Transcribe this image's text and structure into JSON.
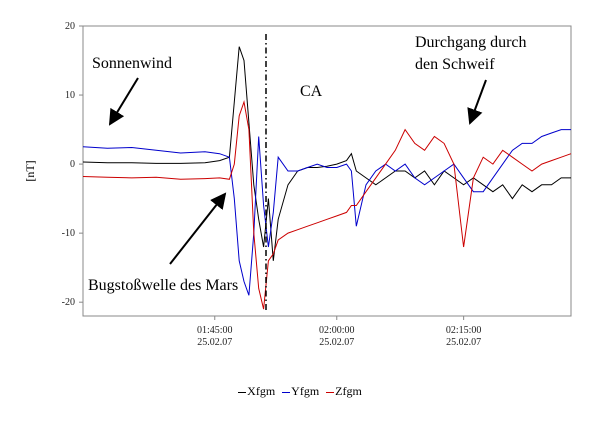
{
  "chart_data": {
    "type": "line",
    "ylabel": "[nT]",
    "xlabel": "",
    "ylim": [
      -22,
      20
    ],
    "yticks": [
      20,
      10,
      0,
      -10,
      -20
    ],
    "xlim": [
      0,
      100
    ],
    "xticks": [
      {
        "x": 27,
        "time": "01:45:00",
        "date": "25.02.07"
      },
      {
        "x": 52,
        "time": "02:00:00",
        "date": "25.02.07"
      },
      {
        "x": 78,
        "time": "02:15:00",
        "date": "25.02.07"
      }
    ],
    "grid": false,
    "legend_position": "bottom-center",
    "closest_approach": {
      "x": 37.5,
      "label": "CA"
    },
    "annotations": [
      {
        "id": "sonnenwind",
        "text": "Sonnenwind"
      },
      {
        "id": "durchgang-1",
        "text": "Durchgang durch"
      },
      {
        "id": "durchgang-2",
        "text": "den Schweif"
      },
      {
        "id": "bugstoss",
        "text": "Bugstoßwelle des Mars"
      }
    ],
    "series": [
      {
        "name": "Xfgm",
        "color": "#000000",
        "x": [
          0,
          5,
          10,
          15,
          20,
          25,
          28,
          30,
          31,
          32,
          33,
          34,
          35,
          36,
          37,
          38,
          39,
          40,
          42,
          44,
          46,
          48,
          50,
          52,
          54,
          55,
          56,
          58,
          60,
          62,
          64,
          66,
          68,
          70,
          72,
          74,
          76,
          78,
          80,
          82,
          84,
          86,
          88,
          90,
          92,
          94,
          96,
          98,
          100
        ],
        "y": [
          0.3,
          0.2,
          0.2,
          0.1,
          0.1,
          0.2,
          0.5,
          1.0,
          9,
          17,
          15,
          6,
          -3,
          -8,
          -12,
          -5,
          -14,
          -8,
          -3,
          -1,
          -0.5,
          -0.5,
          -0.3,
          0,
          0.5,
          1.5,
          -1,
          -2,
          -3,
          -2,
          -1,
          -1,
          -2,
          -1,
          -3,
          -1,
          -2,
          -3,
          -2,
          -3,
          -4,
          -3,
          -5,
          -3,
          -4,
          -3,
          -3,
          -2,
          -2
        ]
      },
      {
        "name": "Yfgm",
        "color": "#0000cc",
        "x": [
          0,
          5,
          10,
          15,
          20,
          25,
          28,
          30,
          31,
          32,
          33,
          34,
          35,
          36,
          37,
          38,
          39,
          40,
          42,
          44,
          46,
          48,
          50,
          52,
          54,
          55,
          56,
          58,
          60,
          62,
          64,
          66,
          68,
          70,
          72,
          74,
          76,
          78,
          80,
          82,
          84,
          86,
          88,
          90,
          92,
          94,
          96,
          98,
          100
        ],
        "y": [
          2.5,
          2.3,
          2.4,
          2.0,
          1.6,
          1.8,
          1.5,
          1.0,
          -5,
          -14,
          -17,
          -19,
          -10,
          4,
          -6,
          -12,
          -7,
          1,
          -1,
          -1,
          -0.5,
          0,
          -0.5,
          -0.5,
          0,
          -1,
          -9,
          -3,
          -1,
          0,
          -1,
          0,
          -2,
          -3,
          -2,
          -1,
          0,
          -2,
          -4,
          -4,
          -2,
          0,
          2,
          3,
          3,
          4,
          4.5,
          5,
          5
        ]
      },
      {
        "name": "Zfgm",
        "color": "#cc0000",
        "x": [
          0,
          5,
          10,
          15,
          20,
          25,
          28,
          30,
          31,
          32,
          33,
          34,
          35,
          36,
          37,
          38,
          39,
          40,
          42,
          44,
          46,
          48,
          50,
          52,
          54,
          55,
          56,
          58,
          60,
          62,
          64,
          66,
          68,
          70,
          72,
          74,
          76,
          78,
          80,
          82,
          84,
          86,
          88,
          90,
          92,
          94,
          96,
          98,
          100
        ],
        "y": [
          -1.8,
          -1.9,
          -2.0,
          -1.9,
          -2.2,
          -2.1,
          -2.0,
          -2.2,
          0,
          7,
          9,
          5,
          -10,
          -18,
          -21,
          -14,
          -13,
          -11,
          -10,
          -9.5,
          -9,
          -8.5,
          -8,
          -7.5,
          -7,
          -6,
          -6,
          -4,
          -2,
          0,
          2,
          5,
          3,
          2,
          4,
          3,
          0,
          -12,
          -2,
          1,
          0,
          2,
          1,
          0,
          -1,
          0,
          0.5,
          1,
          1.5
        ]
      }
    ]
  }
}
